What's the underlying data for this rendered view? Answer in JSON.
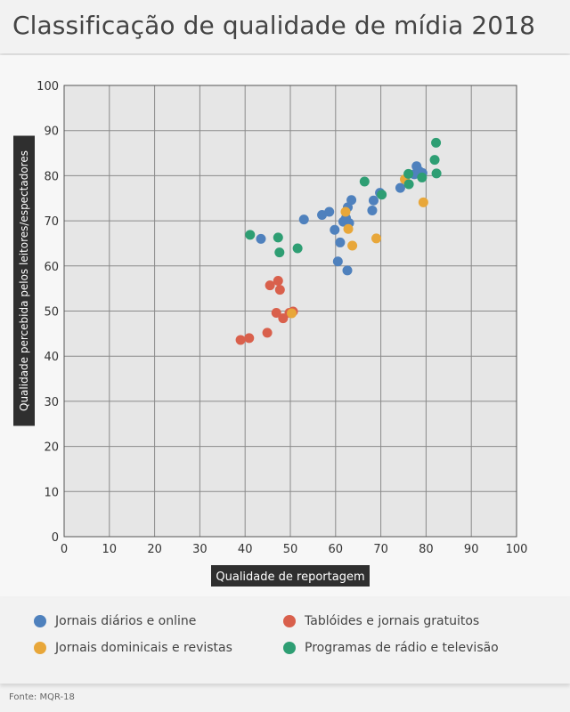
{
  "title": "Classificação de qualidade de mídia 2018",
  "source": "Fonte: MQR-18",
  "colors": {
    "blue": "#4f81bd",
    "red": "#d9604c",
    "orange": "#e8a73a",
    "green": "#2e9e73"
  },
  "legend": [
    {
      "label": "Jornais diários e online",
      "color": "#4f81bd"
    },
    {
      "label": "Tablóides e jornais gratuitos",
      "color": "#d9604c"
    },
    {
      "label": "Jornais dominicais e revistas",
      "color": "#e8a73a"
    },
    {
      "label": "Programas de rádio e televisão",
      "color": "#2e9e73"
    }
  ],
  "chart_data": {
    "type": "scatter",
    "xlabel": "Qualidade de reportagem",
    "ylabel": "Qualidade percebida pelos leitores/espectadores",
    "xlim": [
      0,
      100
    ],
    "ylim": [
      0,
      100
    ],
    "xticks": [
      0,
      10,
      20,
      30,
      40,
      50,
      60,
      70,
      80,
      90,
      100
    ],
    "yticks": [
      0,
      10,
      20,
      30,
      40,
      50,
      60,
      70,
      80,
      90,
      100
    ],
    "grid": true,
    "legend_position": "bottom",
    "series": [
      {
        "name": "Jornais diários e online",
        "color": "#4f81bd",
        "points": [
          [
            43.5,
            66
          ],
          [
            53,
            70.3
          ],
          [
            57,
            71.3
          ],
          [
            58.6,
            72
          ],
          [
            59.8,
            68
          ],
          [
            60.5,
            61
          ],
          [
            61,
            65.2
          ],
          [
            61.7,
            69.8
          ],
          [
            62.3,
            70.6
          ],
          [
            62.7,
            73
          ],
          [
            62.6,
            59
          ],
          [
            63,
            69.5
          ],
          [
            63.5,
            74.6
          ],
          [
            68.1,
            72.3
          ],
          [
            68.4,
            74.5
          ],
          [
            69.8,
            76.2
          ],
          [
            74.3,
            77.3
          ],
          [
            77.4,
            80.3
          ],
          [
            77.9,
            82.1
          ],
          [
            78.5,
            81
          ],
          [
            79.2,
            80.6
          ]
        ]
      },
      {
        "name": "Tablóides e jornais gratuitos",
        "color": "#d9604c",
        "points": [
          [
            39,
            43.6
          ],
          [
            40.9,
            44
          ],
          [
            44.9,
            45.2
          ],
          [
            45.5,
            55.7
          ],
          [
            46.9,
            49.6
          ],
          [
            47.3,
            56.7
          ],
          [
            47.7,
            54.7
          ],
          [
            48.4,
            48.4
          ],
          [
            49.8,
            49.6
          ],
          [
            50.6,
            49.9
          ]
        ]
      },
      {
        "name": "Jornais dominicais e revistas",
        "color": "#e8a73a",
        "points": [
          [
            50.3,
            49.5
          ],
          [
            62.2,
            72
          ],
          [
            62.8,
            68.2
          ],
          [
            63.7,
            64.5
          ],
          [
            69,
            66.1
          ],
          [
            75.3,
            79.2
          ],
          [
            79.4,
            74.1
          ]
        ]
      },
      {
        "name": "Programas de rádio e televisão",
        "color": "#2e9e73",
        "points": [
          [
            41.1,
            66.9
          ],
          [
            47.3,
            66.3
          ],
          [
            47.6,
            63
          ],
          [
            51.6,
            63.9
          ],
          [
            66.4,
            78.7
          ],
          [
            70.2,
            75.8
          ],
          [
            76.1,
            80.4
          ],
          [
            76.2,
            78.1
          ],
          [
            79.1,
            79.6
          ],
          [
            81.9,
            83.5
          ],
          [
            82.2,
            87.3
          ],
          [
            82.3,
            80.5
          ]
        ]
      }
    ]
  }
}
